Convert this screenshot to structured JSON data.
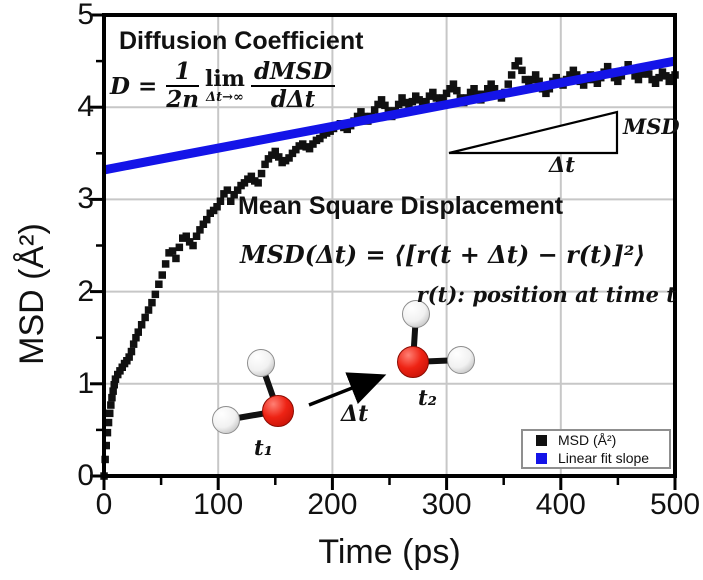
{
  "figure": {
    "background": "#ffffff",
    "accent_blue": "#1414e8",
    "marker_black": "#111111",
    "grid_color": "#c7c7c7",
    "oxygen_red": "#ee2314"
  },
  "annotations": {
    "diffusion_title": "Diffusion Coefficient",
    "diffusion_formula": {
      "lhs": "D =",
      "num1": "1",
      "den1": "2n",
      "lim": "lim",
      "lim_sub": "Δt→∞",
      "num2": "dMSD",
      "den2": "dΔt"
    },
    "msd_title": "Mean Square Displacement",
    "msd_formula": "MSD(Δt) = ⟨[r(t + Δt) − r(t)]²⟩",
    "position_note": "r(t): position at time t",
    "triangle_msd_label": "MSD",
    "triangle_dt_label": "Δt",
    "arrow_dt_label": "Δt",
    "t1_label": "t₁",
    "t2_label": "t₂"
  },
  "legend": {
    "items": [
      {
        "label": "MSD (Å²)",
        "color": "#111111"
      },
      {
        "label": "Linear fit slope",
        "color": "#1414e8"
      }
    ]
  },
  "chart_data": {
    "type": "scatter",
    "title": "",
    "xlabel": "Time (ps)",
    "ylabel": "MSD (Å²)",
    "xlim": [
      0,
      500
    ],
    "ylim": [
      0,
      5
    ],
    "xticks": [
      0,
      100,
      200,
      300,
      400,
      500
    ],
    "yticks": [
      0,
      1,
      2,
      3,
      4,
      5
    ],
    "x_minor_step": 50,
    "y_minor_step": 0.5,
    "grid": true,
    "legend_position": "lower right",
    "series": [
      {
        "name": "MSD (Å²)",
        "type": "scatter-square",
        "color": "#111111",
        "points": [
          [
            0,
            0.0
          ],
          [
            1,
            0.18
          ],
          [
            2,
            0.33
          ],
          [
            3,
            0.47
          ],
          [
            4,
            0.58
          ],
          [
            5,
            0.68
          ],
          [
            6,
            0.77
          ],
          [
            7,
            0.85
          ],
          [
            8,
            0.92
          ],
          [
            9,
            0.99
          ],
          [
            10,
            1.05
          ],
          [
            12,
            1.1
          ],
          [
            14,
            1.14
          ],
          [
            16,
            1.18
          ],
          [
            18,
            1.22
          ],
          [
            20,
            1.25
          ],
          [
            22,
            1.29
          ],
          [
            24,
            1.35
          ],
          [
            26,
            1.43
          ],
          [
            28,
            1.5
          ],
          [
            30,
            1.56
          ],
          [
            33,
            1.64
          ],
          [
            36,
            1.72
          ],
          [
            39,
            1.8
          ],
          [
            42,
            1.88
          ],
          [
            45,
            1.97
          ],
          [
            48,
            2.08
          ],
          [
            51,
            2.18
          ],
          [
            54,
            2.3
          ],
          [
            57,
            2.42
          ],
          [
            60,
            2.44
          ],
          [
            63,
            2.36
          ],
          [
            66,
            2.48
          ],
          [
            69,
            2.58
          ],
          [
            72,
            2.6
          ],
          [
            75,
            2.54
          ],
          [
            78,
            2.5
          ],
          [
            81,
            2.6
          ],
          [
            84,
            2.67
          ],
          [
            87,
            2.73
          ],
          [
            90,
            2.78
          ],
          [
            93,
            2.85
          ],
          [
            96,
            2.88
          ],
          [
            99,
            2.92
          ],
          [
            102,
            2.98
          ],
          [
            105,
            3.06
          ],
          [
            108,
            3.1
          ],
          [
            111,
            2.98
          ],
          [
            114,
            3.05
          ],
          [
            117,
            3.1
          ],
          [
            120,
            3.15
          ],
          [
            123,
            3.18
          ],
          [
            126,
            3.22
          ],
          [
            129,
            3.25
          ],
          [
            132,
            3.2
          ],
          [
            135,
            3.18
          ],
          [
            138,
            3.28
          ],
          [
            141,
            3.38
          ],
          [
            144,
            3.44
          ],
          [
            147,
            3.48
          ],
          [
            150,
            3.52
          ],
          [
            153,
            3.46
          ],
          [
            156,
            3.4
          ],
          [
            159,
            3.42
          ],
          [
            162,
            3.45
          ],
          [
            165,
            3.5
          ],
          [
            168,
            3.54
          ],
          [
            171,
            3.58
          ],
          [
            174,
            3.6
          ],
          [
            177,
            3.57
          ],
          [
            180,
            3.55
          ],
          [
            183,
            3.6
          ],
          [
            186,
            3.64
          ],
          [
            189,
            3.66
          ],
          [
            192,
            3.7
          ],
          [
            195,
            3.72
          ],
          [
            198,
            3.74
          ],
          [
            201,
            3.77
          ],
          [
            204,
            3.8
          ],
          [
            207,
            3.82
          ],
          [
            210,
            3.78
          ],
          [
            213,
            3.76
          ],
          [
            216,
            3.8
          ],
          [
            219,
            3.85
          ],
          [
            222,
            3.9
          ],
          [
            225,
            3.95
          ],
          [
            228,
            3.9
          ],
          [
            231,
            3.85
          ],
          [
            234,
            3.9
          ],
          [
            237,
            3.97
          ],
          [
            240,
            4.03
          ],
          [
            243,
            4.08
          ],
          [
            246,
            4.02
          ],
          [
            249,
            3.96
          ],
          [
            252,
            3.9
          ],
          [
            255,
            3.96
          ],
          [
            258,
            4.03
          ],
          [
            261,
            4.1
          ],
          [
            264,
            4.05
          ],
          [
            267,
            4.0
          ],
          [
            270,
            4.06
          ],
          [
            273,
            4.12
          ],
          [
            276,
            4.08
          ],
          [
            279,
            4.02
          ],
          [
            282,
            4.06
          ],
          [
            285,
            4.12
          ],
          [
            288,
            4.16
          ],
          [
            291,
            4.1
          ],
          [
            294,
            4.05
          ],
          [
            297,
            4.1
          ],
          [
            300,
            4.15
          ],
          [
            303,
            4.2
          ],
          [
            306,
            4.25
          ],
          [
            309,
            4.18
          ],
          [
            312,
            4.1
          ],
          [
            315,
            4.05
          ],
          [
            318,
            4.1
          ],
          [
            321,
            4.16
          ],
          [
            324,
            4.2
          ],
          [
            327,
            4.14
          ],
          [
            330,
            4.08
          ],
          [
            333,
            4.14
          ],
          [
            336,
            4.2
          ],
          [
            339,
            4.25
          ],
          [
            342,
            4.2
          ],
          [
            345,
            4.14
          ],
          [
            348,
            4.1
          ],
          [
            351,
            4.16
          ],
          [
            354,
            4.25
          ],
          [
            357,
            4.35
          ],
          [
            360,
            4.45
          ],
          [
            363,
            4.5
          ],
          [
            366,
            4.4
          ],
          [
            369,
            4.3
          ],
          [
            372,
            4.25
          ],
          [
            375,
            4.3
          ],
          [
            378,
            4.35
          ],
          [
            381,
            4.28
          ],
          [
            384,
            4.2
          ],
          [
            387,
            4.15
          ],
          [
            390,
            4.2
          ],
          [
            393,
            4.28
          ],
          [
            396,
            4.32
          ],
          [
            399,
            4.28
          ],
          [
            402,
            4.24
          ],
          [
            405,
            4.3
          ],
          [
            408,
            4.35
          ],
          [
            411,
            4.4
          ],
          [
            414,
            4.35
          ],
          [
            417,
            4.28
          ],
          [
            420,
            4.24
          ],
          [
            423,
            4.3
          ],
          [
            426,
            4.35
          ],
          [
            429,
            4.3
          ],
          [
            432,
            4.26
          ],
          [
            435,
            4.32
          ],
          [
            438,
            4.38
          ],
          [
            441,
            4.44
          ],
          [
            444,
            4.38
          ],
          [
            447,
            4.32
          ],
          [
            450,
            4.28
          ],
          [
            453,
            4.34
          ],
          [
            456,
            4.4
          ],
          [
            459,
            4.46
          ],
          [
            462,
            4.4
          ],
          [
            465,
            4.34
          ],
          [
            468,
            4.3
          ],
          [
            471,
            4.36
          ],
          [
            474,
            4.42
          ],
          [
            477,
            4.36
          ],
          [
            480,
            4.3
          ],
          [
            483,
            4.26
          ],
          [
            486,
            4.32
          ],
          [
            489,
            4.38
          ],
          [
            492,
            4.34
          ],
          [
            495,
            4.28
          ],
          [
            498,
            4.32
          ],
          [
            500,
            4.35
          ]
        ]
      },
      {
        "name": "Linear fit slope",
        "type": "line",
        "color": "#1414e8",
        "points": [
          [
            0,
            3.32
          ],
          [
            500,
            4.5
          ]
        ]
      }
    ]
  }
}
